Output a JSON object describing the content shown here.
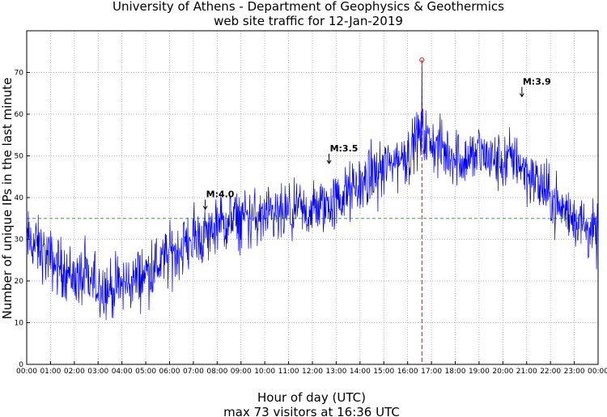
{
  "chart_data": {
    "type": "line",
    "title": "University of Athens - Department of Geophysics & Geothermics",
    "subtitle": "web site traffic for 12-Jan-2019",
    "xlabel": "Hour of day (UTC)",
    "summary": "max 73 visitors at 16:36 UTC",
    "ylabel": "Number of unique IPs in the last minute",
    "xlim": [
      0,
      24
    ],
    "ylim": [
      0,
      80
    ],
    "x_ticks": [
      "00:00",
      "01:00",
      "02:00",
      "03:00",
      "04:00",
      "05:00",
      "06:00",
      "07:00",
      "08:00",
      "09:00",
      "10:00",
      "11:00",
      "12:00",
      "13:00",
      "14:00",
      "15:00",
      "16:00",
      "17:00",
      "18:00",
      "19:00",
      "20:00",
      "21:00",
      "22:00",
      "23:00",
      "00:00"
    ],
    "y_ticks": [
      0,
      10,
      20,
      30,
      40,
      50,
      60,
      70
    ],
    "grid": true,
    "series_color": "#0000ff",
    "trend": {
      "hours": [
        0,
        0.5,
        1,
        1.5,
        2,
        2.5,
        3,
        3.5,
        4,
        4.5,
        5,
        5.5,
        6,
        6.5,
        7,
        7.5,
        8,
        8.5,
        9,
        9.5,
        10,
        10.5,
        11,
        11.5,
        12,
        12.5,
        13,
        13.5,
        14,
        14.5,
        15,
        15.5,
        16,
        16.5,
        17,
        17.5,
        18,
        18.5,
        19,
        19.5,
        20,
        20.5,
        21,
        21.5,
        22,
        22.5,
        23,
        23.5,
        24
      ],
      "values": [
        30,
        28,
        25,
        23,
        21,
        20,
        19,
        18,
        19,
        20,
        22,
        24,
        26,
        28,
        30,
        31,
        33,
        34,
        35,
        35,
        35,
        35,
        36,
        36,
        37,
        38,
        39,
        41,
        43,
        45,
        47,
        49,
        50,
        55,
        53,
        51,
        50,
        49,
        51,
        49,
        48,
        50,
        46,
        43,
        40,
        37,
        35,
        33,
        30
      ]
    },
    "noise_amplitude": 5,
    "max": {
      "hour": 16.6,
      "value": 73,
      "marker_color": "#ff0000"
    },
    "reference_line": {
      "value": 35,
      "color": "#00cc00",
      "style": "dashed"
    },
    "annotations": [
      {
        "label": "M:4.0",
        "hour": 7.5,
        "value": 37
      },
      {
        "label": "M:3.5",
        "hour": 12.7,
        "value": 48
      },
      {
        "label": "M:3.9",
        "hour": 20.8,
        "value": 64
      }
    ]
  }
}
